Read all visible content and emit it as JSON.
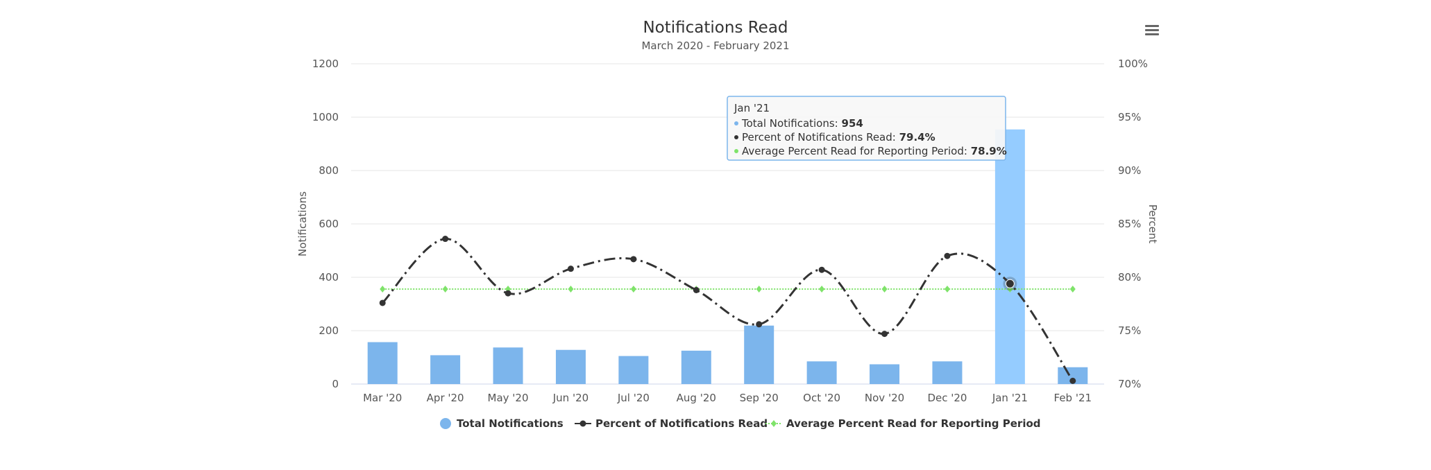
{
  "chart_data": {
    "type": "bar+line",
    "title": "Notifications Read",
    "subtitle": "March 2020 - February 2021",
    "categories": [
      "Mar '20",
      "Apr '20",
      "May '20",
      "Jun '20",
      "Jul '20",
      "Aug '20",
      "Sep '20",
      "Oct '20",
      "Nov '20",
      "Dec '20",
      "Jan '21",
      "Feb '21"
    ],
    "y_left": {
      "label": "Notifications",
      "range": [
        0,
        1200
      ],
      "ticks": [
        "0",
        "200",
        "400",
        "600",
        "800",
        "1000",
        "1200"
      ]
    },
    "y_right": {
      "label": "Percent",
      "range": [
        70,
        100
      ],
      "ticks": [
        "70%",
        "75%",
        "80%",
        "85%",
        "90%",
        "95%",
        "100%"
      ]
    },
    "grid": true,
    "legend_position": "bottom-center",
    "series": [
      {
        "name": "Total Notifications",
        "type": "bar",
        "axis": "left",
        "color": "#7cb5ec",
        "values": [
          157,
          108,
          137,
          128,
          105,
          125,
          219,
          85,
          74,
          85,
          954,
          63
        ]
      },
      {
        "name": "Percent of Notifications Read",
        "type": "spline",
        "axis": "right",
        "color": "#333333",
        "values": [
          77.6,
          83.6,
          78.5,
          80.8,
          81.7,
          78.8,
          75.6,
          80.7,
          74.7,
          82.0,
          79.4,
          70.3
        ]
      },
      {
        "name": "Average Percent Read for Reporting Period",
        "type": "line",
        "axis": "right",
        "color": "#7fe36a",
        "values": [
          78.9,
          78.9,
          78.9,
          78.9,
          78.9,
          78.9,
          78.9,
          78.9,
          78.9,
          78.9,
          78.9,
          78.9
        ]
      }
    ],
    "tooltip": {
      "header": "Jan '21",
      "rows": [
        {
          "label": "Total Notifications: ",
          "value": "954",
          "color": "#7cb5ec"
        },
        {
          "label": "Percent of Notifications Read: ",
          "value": "79.4%",
          "color": "#333333"
        },
        {
          "label": "Average Percent Read for Reporting Period: ",
          "value": "78.9%",
          "color": "#7fe36a"
        }
      ]
    },
    "highlighted_index": 10
  },
  "menu_icon": "hamburger-menu-icon"
}
